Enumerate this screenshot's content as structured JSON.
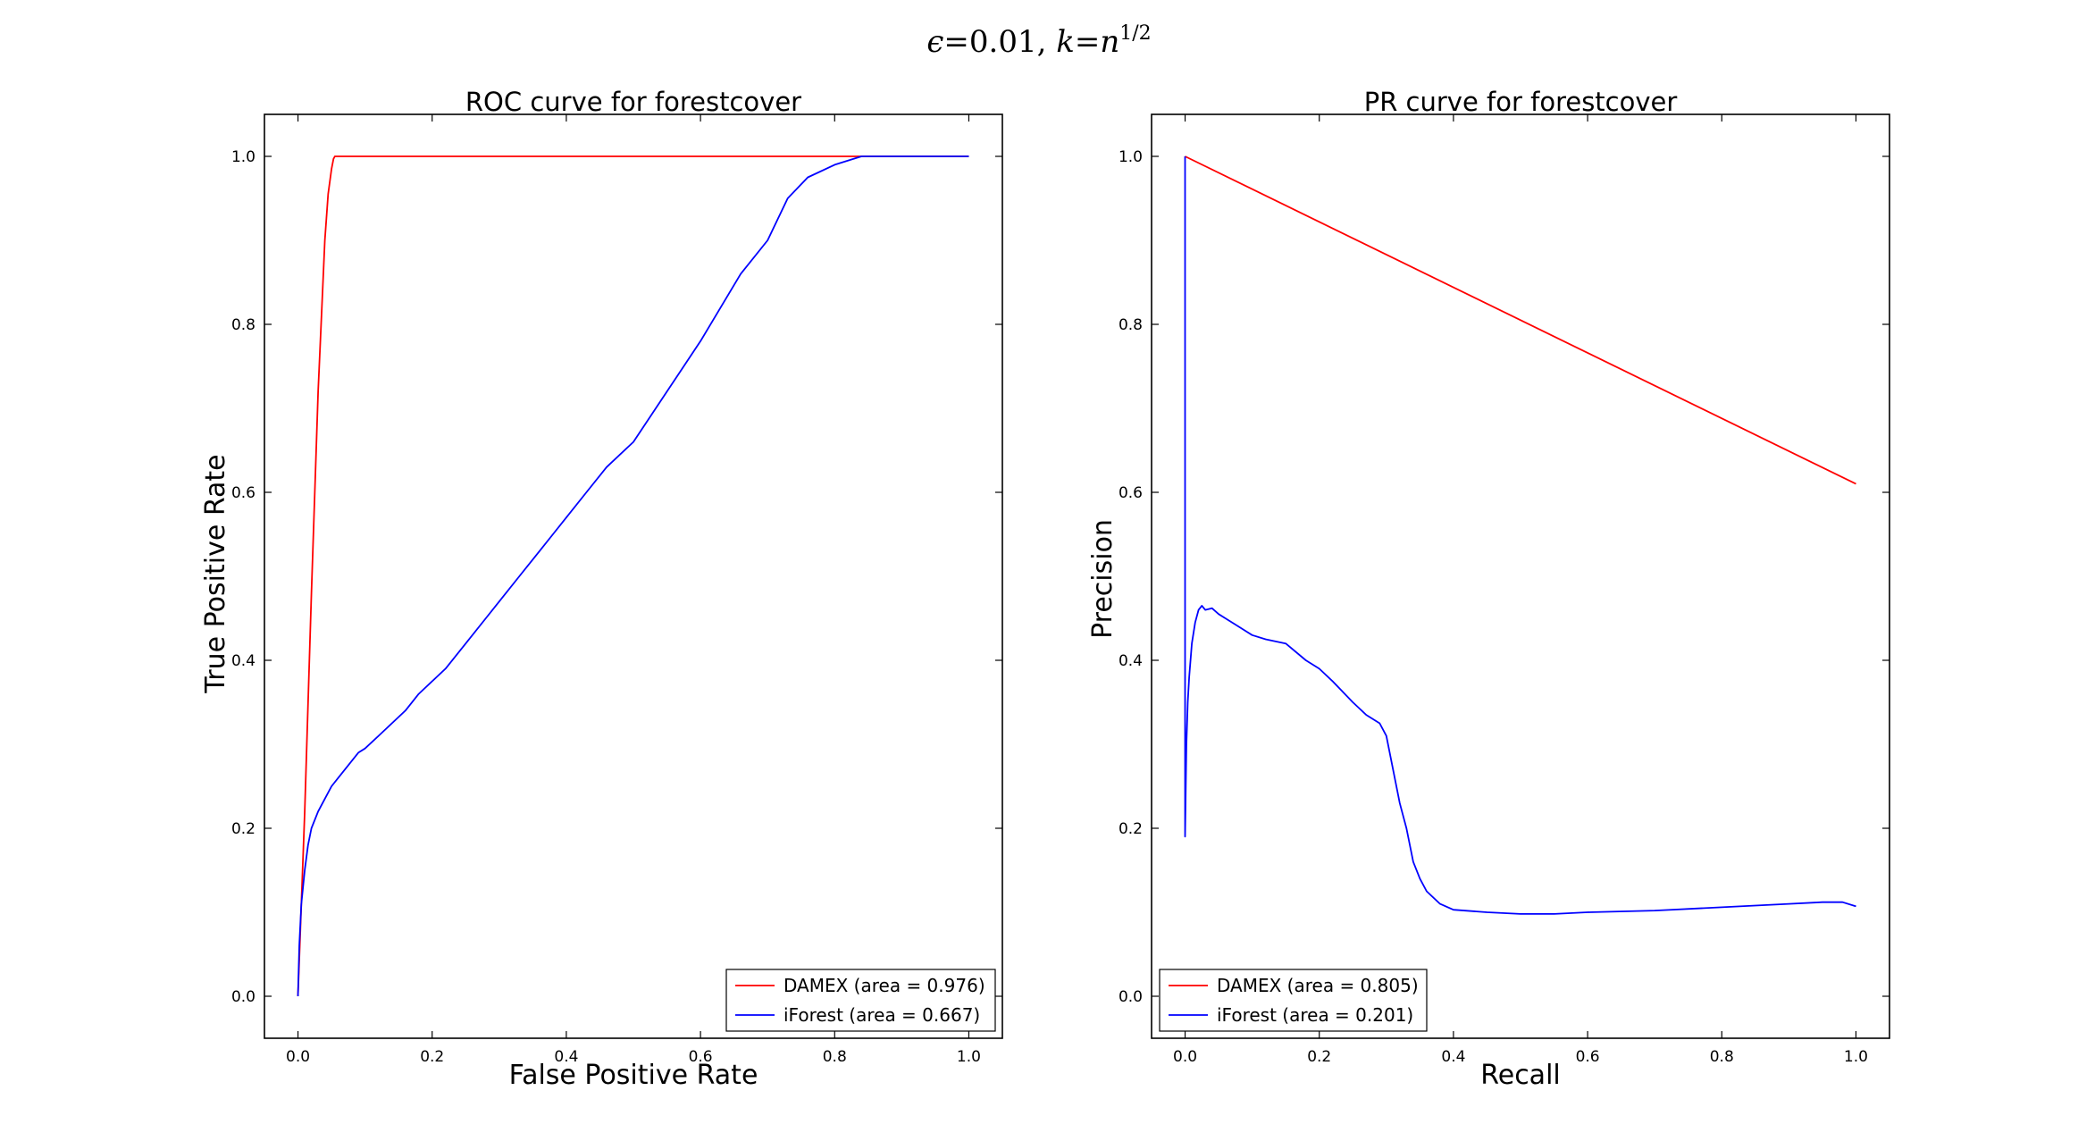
{
  "figure": {
    "suptitle": "ϵ=0.01, k=n^{1/2}",
    "suptitle_parts": {
      "eps": "ϵ",
      "eps_val": "=0.01, ",
      "k": "k",
      "eq": "=",
      "n": "n",
      "exp": "1/2"
    }
  },
  "chart_data": [
    {
      "type": "line",
      "title": "ROC curve for forestcover",
      "xlabel": "False Positive Rate",
      "ylabel": "True Positive Rate",
      "xlim": [
        -0.05,
        1.05
      ],
      "ylim": [
        -0.05,
        1.05
      ],
      "xticks": [
        "0.0",
        "0.2",
        "0.4",
        "0.6",
        "0.8",
        "1.0"
      ],
      "yticks": [
        "0.0",
        "0.2",
        "0.4",
        "0.6",
        "0.8",
        "1.0"
      ],
      "grid": false,
      "legend": "lower-right",
      "series": [
        {
          "name": "DAMEX (area = 0.976)",
          "color": "#ff0000",
          "x": [
            0.0,
            0.01,
            0.02,
            0.03,
            0.04,
            0.045,
            0.05,
            0.053,
            0.055,
            0.06,
            0.2,
            0.4,
            0.6,
            0.8,
            0.84,
            1.0
          ],
          "y": [
            0.0,
            0.22,
            0.48,
            0.72,
            0.9,
            0.955,
            0.985,
            0.997,
            1.0,
            1.0,
            1.0,
            1.0,
            1.0,
            1.0,
            1.0,
            1.0
          ]
        },
        {
          "name": "iForest (area = 0.667)",
          "color": "#0000ff",
          "x": [
            0.0,
            0.002,
            0.005,
            0.01,
            0.015,
            0.02,
            0.03,
            0.04,
            0.05,
            0.06,
            0.07,
            0.08,
            0.09,
            0.1,
            0.12,
            0.14,
            0.16,
            0.18,
            0.2,
            0.22,
            0.25,
            0.28,
            0.3,
            0.33,
            0.36,
            0.38,
            0.4,
            0.43,
            0.46,
            0.5,
            0.55,
            0.6,
            0.63,
            0.66,
            0.7,
            0.73,
            0.76,
            0.8,
            0.84,
            1.0
          ],
          "y": [
            0.0,
            0.06,
            0.11,
            0.15,
            0.18,
            0.2,
            0.22,
            0.235,
            0.25,
            0.26,
            0.27,
            0.28,
            0.29,
            0.295,
            0.31,
            0.325,
            0.34,
            0.36,
            0.375,
            0.39,
            0.42,
            0.45,
            0.47,
            0.5,
            0.53,
            0.55,
            0.57,
            0.6,
            0.63,
            0.66,
            0.72,
            0.78,
            0.82,
            0.86,
            0.9,
            0.95,
            0.975,
            0.99,
            1.0,
            1.0
          ]
        }
      ]
    },
    {
      "type": "line",
      "title": "PR curve for forestcover",
      "xlabel": "Recall",
      "ylabel": "Precision",
      "xlim": [
        -0.05,
        1.05
      ],
      "ylim": [
        -0.05,
        1.05
      ],
      "xticks": [
        "0.0",
        "0.2",
        "0.4",
        "0.6",
        "0.8",
        "1.0"
      ],
      "yticks": [
        "0.0",
        "0.2",
        "0.4",
        "0.6",
        "0.8",
        "1.0"
      ],
      "grid": false,
      "legend": "lower-left",
      "series": [
        {
          "name": "DAMEX (area = 0.805)",
          "color": "#ff0000",
          "x": [
            0.0,
            1.0
          ],
          "y": [
            1.0,
            0.61
          ]
        },
        {
          "name": "iForest (area = 0.201)",
          "color": "#0000ff",
          "x": [
            0.0,
            0.0,
            0.001,
            0.002,
            0.004,
            0.006,
            0.01,
            0.015,
            0.02,
            0.025,
            0.03,
            0.04,
            0.05,
            0.06,
            0.08,
            0.1,
            0.12,
            0.15,
            0.18,
            0.2,
            0.22,
            0.25,
            0.27,
            0.29,
            0.3,
            0.31,
            0.32,
            0.33,
            0.34,
            0.35,
            0.36,
            0.38,
            0.4,
            0.45,
            0.5,
            0.55,
            0.6,
            0.7,
            0.8,
            0.9,
            0.95,
            0.98,
            1.0
          ],
          "y": [
            1.0,
            0.19,
            0.25,
            0.3,
            0.35,
            0.38,
            0.42,
            0.445,
            0.46,
            0.465,
            0.46,
            0.462,
            0.455,
            0.45,
            0.44,
            0.43,
            0.425,
            0.42,
            0.4,
            0.39,
            0.375,
            0.35,
            0.335,
            0.325,
            0.31,
            0.27,
            0.23,
            0.2,
            0.16,
            0.14,
            0.125,
            0.11,
            0.103,
            0.1,
            0.098,
            0.098,
            0.1,
            0.102,
            0.106,
            0.11,
            0.112,
            0.112,
            0.107
          ]
        }
      ]
    }
  ]
}
